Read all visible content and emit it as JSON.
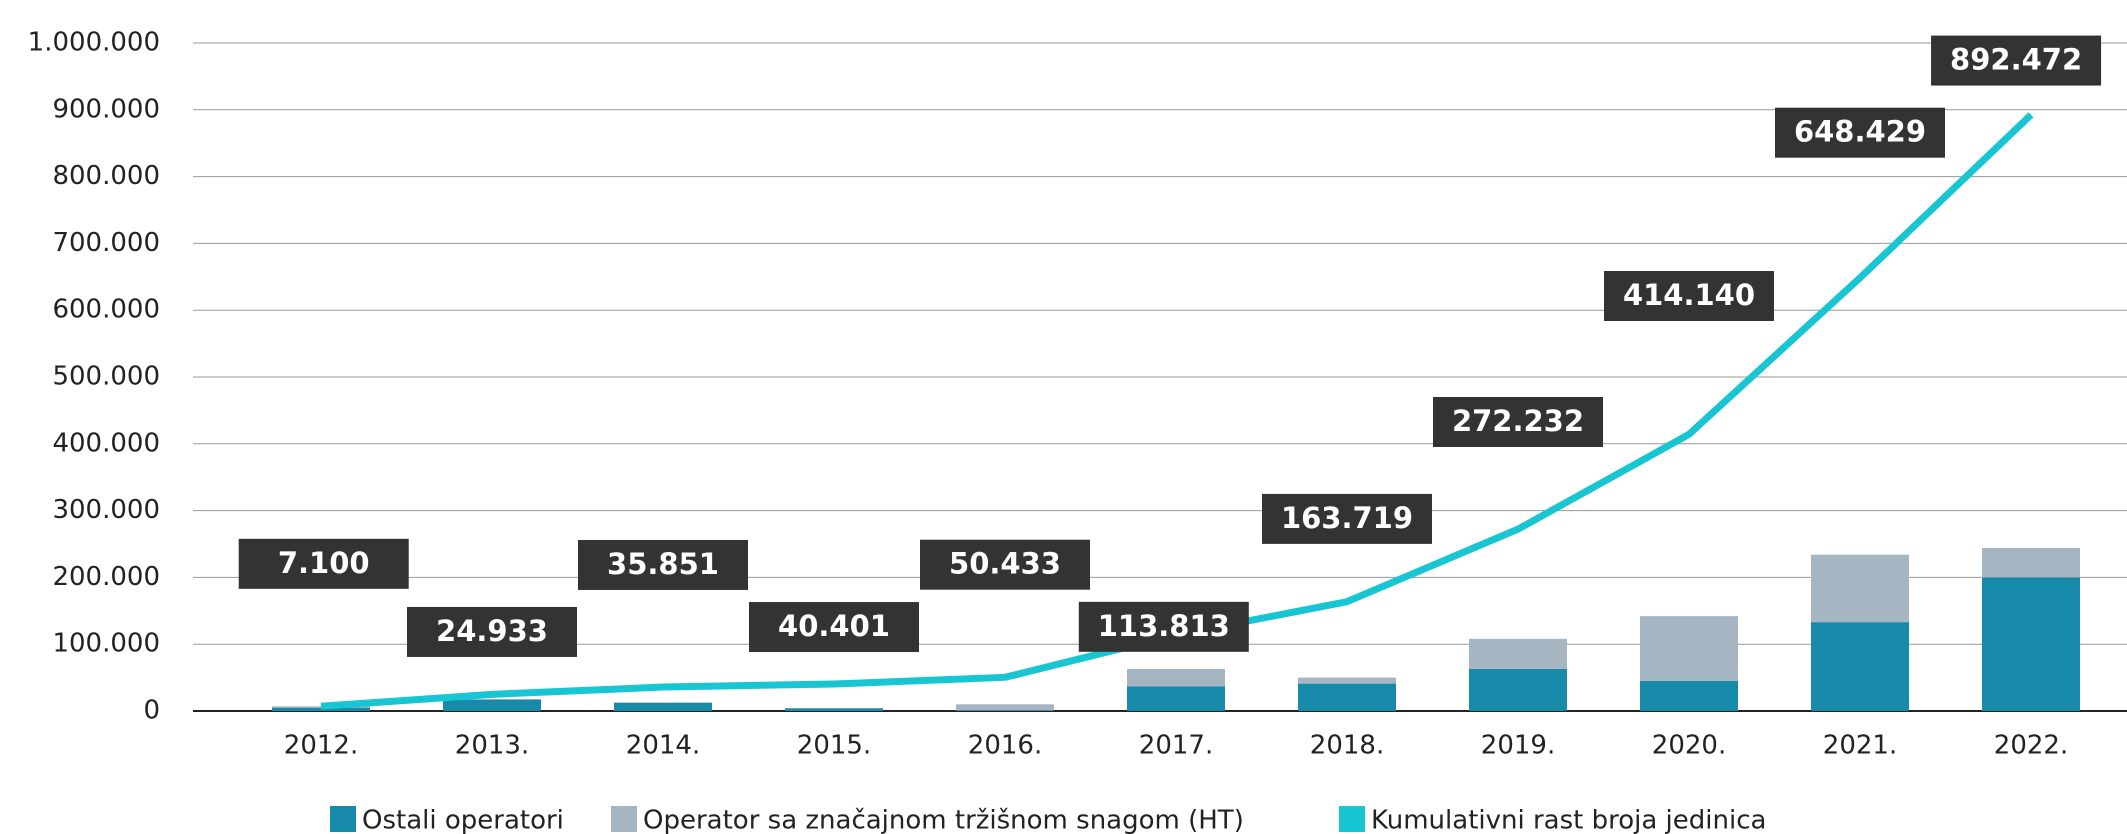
{
  "chart_data": {
    "type": "bar-line",
    "categories": [
      "2012.",
      "2013.",
      "2014.",
      "2015.",
      "2016.",
      "2017.",
      "2018.",
      "2019.",
      "2020.",
      "2021.",
      "2022."
    ],
    "series": [
      {
        "name": "Ostali operatori",
        "color": "#168aa8",
        "type": "bar",
        "values": [
          5000,
          17000,
          12000,
          4000,
          1000,
          37000,
          41000,
          63000,
          45000,
          133000,
          200000
        ]
      },
      {
        "name": "Operator sa značajnom tržišnom snagom (HT)",
        "color": "#a5b5c2",
        "type": "bar",
        "values": [
          2000,
          1000,
          1000,
          500,
          9000,
          26000,
          9000,
          45000,
          97000,
          101000,
          44000
        ]
      },
      {
        "name": "Kumulativni rast broja jedinica",
        "color": "#18c6d3",
        "type": "line",
        "values": [
          7100,
          24933,
          35851,
          40401,
          50433,
          113813,
          163719,
          272232,
          414140,
          648429,
          892472
        ],
        "value_labels": [
          "7.100",
          "24.933",
          "35.851",
          "40.401",
          "50.433",
          "113.813",
          "163.719",
          "272.232",
          "414.140",
          "648.429",
          "892.472"
        ]
      }
    ],
    "ylim": [
      0,
      1000000
    ],
    "yticks": [
      0,
      {
        "value": 100000,
        "label": "100.000"
      },
      {
        "value": 200000,
        "label": "200.000"
      },
      {
        "value": 300000,
        "label": "300.000"
      },
      {
        "value": 400000,
        "label": "400.000"
      },
      {
        "value": 500000,
        "label": "500.000"
      },
      {
        "value": 600000,
        "label": "600.000"
      },
      {
        "value": 700000,
        "label": "700.000"
      },
      {
        "value": 800000,
        "label": "800.000"
      },
      {
        "value": 900000,
        "label": "900.000"
      },
      {
        "value": 1000000,
        "label": "1.000.000"
      }
    ],
    "grid": true,
    "legend": "bottom"
  }
}
